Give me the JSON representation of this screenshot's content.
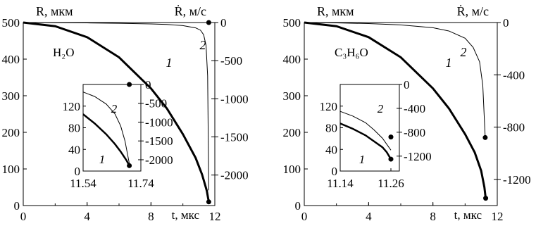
{
  "chart_data": [
    {
      "type": "line",
      "ylabel": "R, мкм",
      "y2label": "Ṙ, м/с",
      "xlabel": "t, мкс",
      "substance": "H₂O",
      "xlim": [
        0,
        12
      ],
      "ylim": [
        0,
        500
      ],
      "y2lim": [
        -2400,
        0
      ],
      "x_ticks": [
        "0",
        "4",
        "8",
        "12"
      ],
      "y_ticks": [
        "0",
        "100",
        "200",
        "300",
        "400",
        "500"
      ],
      "y2_ticks": [
        "0",
        "-500",
        "-1000",
        "-1500",
        "-2000"
      ],
      "series": [
        {
          "name": "1",
          "axis": "left",
          "x": [
            0,
            2,
            4,
            6,
            8,
            9,
            10,
            10.8,
            11.2,
            11.5,
            11.62
          ],
          "y": [
            500,
            490,
            460,
            405,
            320,
            265,
            195,
            130,
            85,
            40,
            10
          ],
          "end_marker": true
        },
        {
          "name": "2",
          "axis": "right",
          "x": [
            0,
            2,
            4,
            6,
            8,
            9,
            10,
            10.8,
            11.1,
            11.3,
            11.45,
            11.55,
            11.62
          ],
          "y": [
            0,
            -2,
            -5,
            -10,
            -18,
            -25,
            -40,
            -70,
            -100,
            -160,
            -300,
            -700,
            -2200
          ],
          "end_marker_x": 11.62,
          "end_marker_y": 0
        }
      ],
      "inset": {
        "xlim": [
          11.54,
          11.74
        ],
        "ylim": [
          0,
          160
        ],
        "y2lim": [
          -2300,
          0
        ],
        "x_ticks": [
          "11.54",
          "11.74"
        ],
        "y_ticks": [
          "0",
          "40",
          "80",
          "120"
        ],
        "y2_ticks": [
          "0",
          "-500",
          "-1000",
          "-1500",
          "-2000"
        ],
        "series": [
          {
            "name": "1",
            "axis": "left",
            "x": [
              11.54,
              11.58,
              11.62,
              11.65,
              11.67,
              11.69,
              11.7
            ],
            "y": [
              105,
              88,
              68,
              50,
              36,
              20,
              10
            ],
            "end_marker": true
          },
          {
            "name": "2",
            "axis": "right",
            "x": [
              11.54,
              11.58,
              11.62,
              11.65,
              11.67,
              11.685,
              11.7
            ],
            "y": [
              -200,
              -320,
              -520,
              -780,
              -1100,
              -1500,
              -2100
            ],
            "end_marker_x": 11.7,
            "end_marker_y": 0
          }
        ]
      }
    },
    {
      "type": "line",
      "ylabel": "R, мкм",
      "y2label": "Ṙ, м/с",
      "xlabel": "t, мкс",
      "substance": "C₃H₆O",
      "xlim": [
        0,
        12
      ],
      "ylim": [
        0,
        500
      ],
      "y2lim": [
        -1400,
        0
      ],
      "x_ticks": [
        "0",
        "4",
        "8",
        "12"
      ],
      "y_ticks": [
        "0",
        "100",
        "200",
        "300",
        "400",
        "500"
      ],
      "y2_ticks": [
        "0",
        "-400",
        "-800",
        "-1200"
      ],
      "series": [
        {
          "name": "1",
          "axis": "left",
          "x": [
            0,
            2,
            4,
            6,
            8,
            9,
            10,
            10.6,
            11,
            11.2,
            11.28
          ],
          "y": [
            500,
            490,
            460,
            405,
            320,
            265,
            195,
            145,
            95,
            50,
            20
          ],
          "end_marker": true
        },
        {
          "name": "2",
          "axis": "right",
          "x": [
            0,
            2,
            4,
            6,
            8,
            9,
            10,
            10.5,
            10.9,
            11.1,
            11.25
          ],
          "y": [
            0,
            -3,
            -8,
            -18,
            -40,
            -65,
            -120,
            -190,
            -300,
            -480,
            -880
          ],
          "end_marker": true
        }
      ],
      "inset": {
        "xlim": [
          11.14,
          11.28
        ],
        "ylim": [
          0,
          160
        ],
        "y2lim": [
          -1450,
          0
        ],
        "x_ticks": [
          "11.14",
          "11.26"
        ],
        "y_ticks": [
          "0",
          "40",
          "80",
          "120"
        ],
        "y2_ticks": [
          "0",
          "-400",
          "-800",
          "-1200"
        ],
        "series": [
          {
            "name": "1",
            "axis": "left",
            "x": [
              11.14,
              11.17,
              11.2,
              11.22,
              11.24,
              11.25,
              11.26
            ],
            "y": [
              88,
              78,
              66,
              55,
              44,
              35,
              22
            ],
            "end_marker": true
          },
          {
            "name": "2",
            "axis": "right",
            "x": [
              11.14,
              11.17,
              11.2,
              11.22,
              11.24,
              11.25,
              11.26
            ],
            "y": [
              -450,
              -530,
              -640,
              -760,
              -900,
              -1000,
              -1100
            ],
            "end_marker_x": 11.26,
            "end_marker_y": -880
          }
        ]
      }
    }
  ]
}
